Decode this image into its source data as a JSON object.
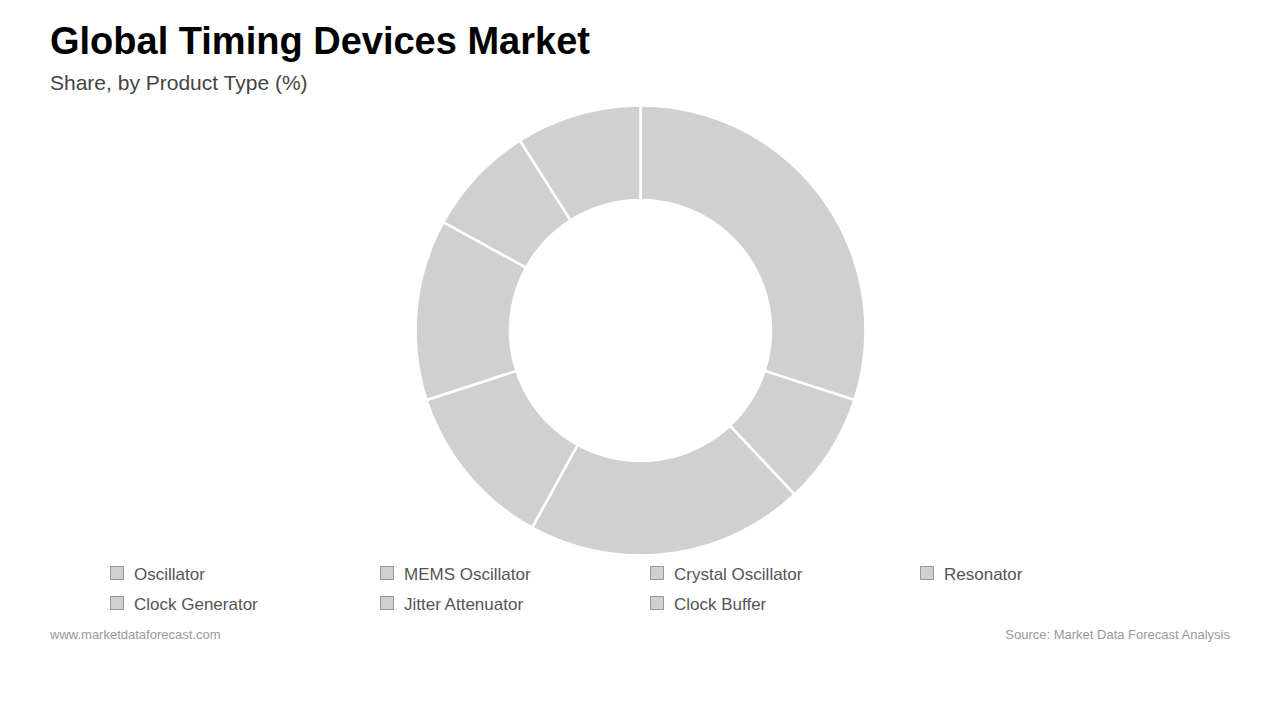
{
  "chart_data": {
    "type": "donut",
    "title": "Global Timing Devices Market",
    "subtitle": "Share, by Product Type (%)",
    "categories": [
      "Oscillator",
      "MEMS Oscillator",
      "Crystal Oscillator",
      "Resonator",
      "Clock Generator",
      "Jitter Attenuator",
      "Clock Buffer"
    ],
    "values": [
      30,
      8,
      20,
      12,
      13,
      8,
      9
    ],
    "color": "#d0d0d0",
    "legend": "bottom",
    "annotations": [
      "www.marketdataforecast.com",
      "Source: Market Data Forecast Analysis"
    ]
  }
}
